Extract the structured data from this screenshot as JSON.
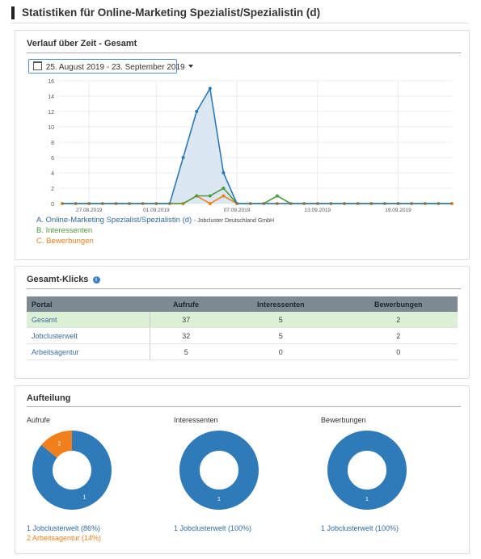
{
  "page": {
    "title": "Statistiken für Online-Marketing Spezialist/Spezialistin (d)"
  },
  "colors": {
    "blue": "#2f7ab8",
    "green": "#4c9a3c",
    "orange": "#f07f1c",
    "area": "#d5e3f0"
  },
  "timeline": {
    "title": "Verlauf über Zeit - Gesamt",
    "date_range": "25. August 2019 - 23. September 2019",
    "legend": {
      "a": "A. Online-Marketing Spezialist/Spezialistin (d)",
      "a_sub": "- Jobcluster Deutschland GmbH",
      "b": "B. Interessenten",
      "c": "C. Bewerbungen"
    },
    "chart_data": {
      "type": "line",
      "x": [
        "25.08",
        "26.08",
        "27.08",
        "28.08",
        "29.08",
        "30.08",
        "31.08",
        "01.09",
        "02.09",
        "03.09",
        "04.09",
        "05.09",
        "06.09",
        "07.09",
        "08.09",
        "09.09",
        "10.09",
        "11.09",
        "12.09",
        "13.09",
        "14.09",
        "15.09",
        "16.09",
        "17.09",
        "18.09",
        "19.09",
        "20.09",
        "21.09",
        "22.09",
        "23.09"
      ],
      "xticks": [
        "27.08.2019",
        "01.09.2019",
        "07.09.2019",
        "13.09.2019",
        "19.09.2019"
      ],
      "yticks": [
        0,
        2,
        4,
        6,
        8,
        10,
        12,
        14,
        16
      ],
      "ylim": [
        0,
        16
      ],
      "series": [
        {
          "name": "A. Online-Marketing Spezialist/Spezialistin (d)",
          "values": [
            0,
            0,
            0,
            0,
            0,
            0,
            0,
            0,
            0,
            6,
            12,
            15,
            4,
            0,
            0,
            0,
            0,
            0,
            0,
            0,
            0,
            0,
            0,
            0,
            0,
            0,
            0,
            0,
            0,
            0
          ]
        },
        {
          "name": "B. Interessenten",
          "values": [
            0,
            0,
            0,
            0,
            0,
            0,
            0,
            0,
            0,
            0,
            1,
            1,
            2,
            0,
            0,
            0,
            1,
            0,
            0,
            0,
            0,
            0,
            0,
            0,
            0,
            0,
            0,
            0,
            0,
            0
          ]
        },
        {
          "name": "C. Bewerbungen",
          "values": [
            0,
            0,
            0,
            0,
            0,
            0,
            0,
            0,
            0,
            0,
            1,
            0,
            1,
            0,
            0,
            0,
            0,
            0,
            0,
            0,
            0,
            0,
            0,
            0,
            0,
            0,
            0,
            0,
            0,
            0
          ]
        }
      ]
    }
  },
  "clicks": {
    "title": "Gesamt-Klicks",
    "info_icon": "info-icon",
    "info_glyph": "i",
    "headers": [
      "Portal",
      "Aufrufe",
      "Interessenten",
      "Bewerbungen"
    ],
    "rows": [
      [
        "Gesamt",
        "37",
        "5",
        "2"
      ],
      [
        "Jobclusterwelt",
        "32",
        "5",
        "2"
      ],
      [
        "Arbeitsagentur",
        "5",
        "0",
        "0"
      ]
    ]
  },
  "split": {
    "title": "Aufteilung",
    "charts": [
      {
        "label": "Aufrufe",
        "slices": [
          {
            "name": "1 Jobclusterwelt (86%)",
            "value": 86,
            "tag": "1",
            "color": "#2f7ab8"
          },
          {
            "name": "2 Arbeitsagentur (14%)",
            "value": 14,
            "tag": "2",
            "color": "#f07f1c"
          }
        ]
      },
      {
        "label": "Interessenten",
        "slices": [
          {
            "name": "1 Jobclusterwelt (100%)",
            "value": 100,
            "tag": "1",
            "color": "#2f7ab8"
          }
        ]
      },
      {
        "label": "Bewerbungen",
        "slices": [
          {
            "name": "1 Jobclusterwelt (100%)",
            "value": 100,
            "tag": "1",
            "color": "#2f7ab8"
          }
        ]
      }
    ]
  }
}
